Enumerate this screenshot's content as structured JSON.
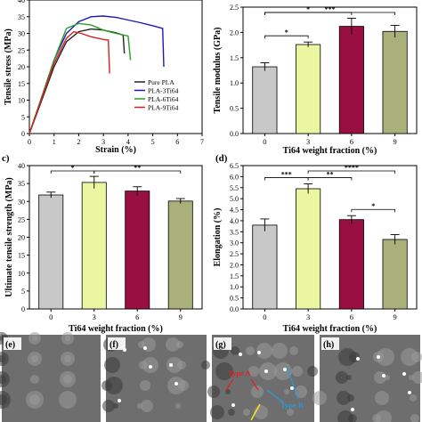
{
  "chart_data": [
    {
      "panel": "a",
      "type": "line",
      "xlabel": "Strain (%)",
      "ylabel": "Tensile stress (MPa)",
      "xlim": [
        0,
        7
      ],
      "ylim": [
        0,
        40
      ],
      "xticks": [
        0,
        1,
        2,
        3,
        4,
        5,
        6,
        7
      ],
      "yticks": [
        0,
        5,
        10,
        15,
        20,
        25,
        30,
        35,
        40
      ],
      "legend_position": "bottom-right",
      "series": [
        {
          "name": "Pure PLA",
          "color": "#222222",
          "points": [
            [
              0,
              0
            ],
            [
              0.5,
              10
            ],
            [
              1.0,
              20
            ],
            [
              1.5,
              27.5
            ],
            [
              2.0,
              30.5
            ],
            [
              2.5,
              31.3
            ],
            [
              3.0,
              31
            ],
            [
              3.5,
              30.2
            ],
            [
              3.8,
              29.5
            ],
            [
              3.85,
              24
            ]
          ]
        },
        {
          "name": "PLA-3Ti64",
          "color": "#1a1ab8",
          "points": [
            [
              0,
              0
            ],
            [
              0.5,
              11
            ],
            [
              1.0,
              22
            ],
            [
              1.5,
              30
            ],
            [
              2.0,
              33.5
            ],
            [
              2.5,
              35
            ],
            [
              3.0,
              35.2
            ],
            [
              3.5,
              34.8
            ],
            [
              4.0,
              34
            ],
            [
              4.5,
              33.2
            ],
            [
              5.0,
              32.3
            ],
            [
              5.4,
              31.5
            ],
            [
              5.45,
              20
            ]
          ]
        },
        {
          "name": "PLA-6Ti64",
          "color": "#2c9e2c",
          "points": [
            [
              0,
              0
            ],
            [
              0.5,
              11
            ],
            [
              1.0,
              22
            ],
            [
              1.5,
              31.5
            ],
            [
              2.0,
              33
            ],
            [
              2.5,
              32.5
            ],
            [
              3.0,
              31
            ],
            [
              3.5,
              30
            ],
            [
              4.0,
              29.2
            ],
            [
              4.1,
              22
            ]
          ]
        },
        {
          "name": "PLA-9Ti64",
          "color": "#d62020",
          "points": [
            [
              0,
              0
            ],
            [
              0.5,
              10.5
            ],
            [
              1.0,
              21
            ],
            [
              1.5,
              28.5
            ],
            [
              1.8,
              30.5
            ],
            [
              2.1,
              30
            ],
            [
              2.5,
              29
            ],
            [
              3.0,
              28.2
            ],
            [
              3.2,
              28
            ],
            [
              3.25,
              18
            ]
          ]
        }
      ]
    },
    {
      "panel": "b",
      "type": "bar",
      "xlabel": "Ti64 weight fraction (%)",
      "ylabel": "Tensile modulus (GPa)",
      "categories": [
        "0",
        "3",
        "6",
        "9"
      ],
      "values": [
        1.32,
        1.76,
        2.12,
        2.02
      ],
      "errors": [
        0.08,
        0.05,
        0.16,
        0.12
      ],
      "colors": [
        "#c8c8c8",
        "#eaf7a0",
        "#9a0f42",
        "#aab07a"
      ],
      "ylim": [
        0,
        2.5
      ],
      "yticks": [
        0.0,
        0.5,
        1.0,
        1.5,
        2.0,
        2.5
      ],
      "significance": [
        {
          "pair": [
            0,
            1
          ],
          "label": "*"
        },
        {
          "pair": [
            0,
            2
          ],
          "label": "*"
        },
        {
          "pair": [
            0,
            3
          ],
          "label": "***"
        }
      ]
    },
    {
      "panel": "c",
      "type": "bar",
      "xlabel": "Ti64 weight fraction (%)",
      "ylabel": "Ultimate tensile strength (MPa)",
      "categories": [
        "0",
        "3",
        "6",
        "9"
      ],
      "values": [
        31.8,
        35.3,
        32.9,
        30.1
      ],
      "errors": [
        0.8,
        1.7,
        1.2,
        0.7
      ],
      "colors": [
        "#c8c8c8",
        "#eaf7a0",
        "#9a0f42",
        "#aab07a"
      ],
      "ylim": [
        0,
        40
      ],
      "yticks": [
        0,
        5,
        10,
        15,
        20,
        25,
        30,
        35,
        40
      ],
      "significance": [
        {
          "pair": [
            0,
            1
          ],
          "label": "*"
        },
        {
          "pair": [
            1,
            3
          ],
          "label": "**"
        }
      ]
    },
    {
      "panel": "d",
      "type": "bar",
      "xlabel": "Ti64 weight fraction (%)",
      "ylabel": "Elongation (%)",
      "categories": [
        "0",
        "3",
        "6",
        "9"
      ],
      "values": [
        3.8,
        5.45,
        4.05,
        3.15
      ],
      "errors": [
        0.28,
        0.22,
        0.18,
        0.22
      ],
      "colors": [
        "#c8c8c8",
        "#eaf7a0",
        "#9a0f42",
        "#aab07a"
      ],
      "ylim": [
        0,
        6.5
      ],
      "yticks": [
        0.0,
        0.5,
        1.0,
        1.5,
        2.0,
        2.5,
        3.0,
        3.5,
        4.0,
        4.5,
        5.0,
        5.5,
        6.0,
        6.5
      ],
      "significance": [
        {
          "pair": [
            0,
            1
          ],
          "label": "***"
        },
        {
          "pair": [
            1,
            2
          ],
          "label": "**"
        },
        {
          "pair": [
            2,
            3
          ],
          "label": "*"
        },
        {
          "pair": [
            1,
            3
          ],
          "label": "****"
        }
      ]
    }
  ],
  "panel_labels": [
    "c)",
    "(d)",
    "(e)",
    "(f)",
    "(g)",
    "(h)"
  ],
  "micrographs": [
    {
      "panel": "e"
    },
    {
      "panel": "f"
    },
    {
      "panel": "g",
      "annotations": [
        "Type A",
        "Type B"
      ]
    },
    {
      "panel": "h"
    }
  ]
}
